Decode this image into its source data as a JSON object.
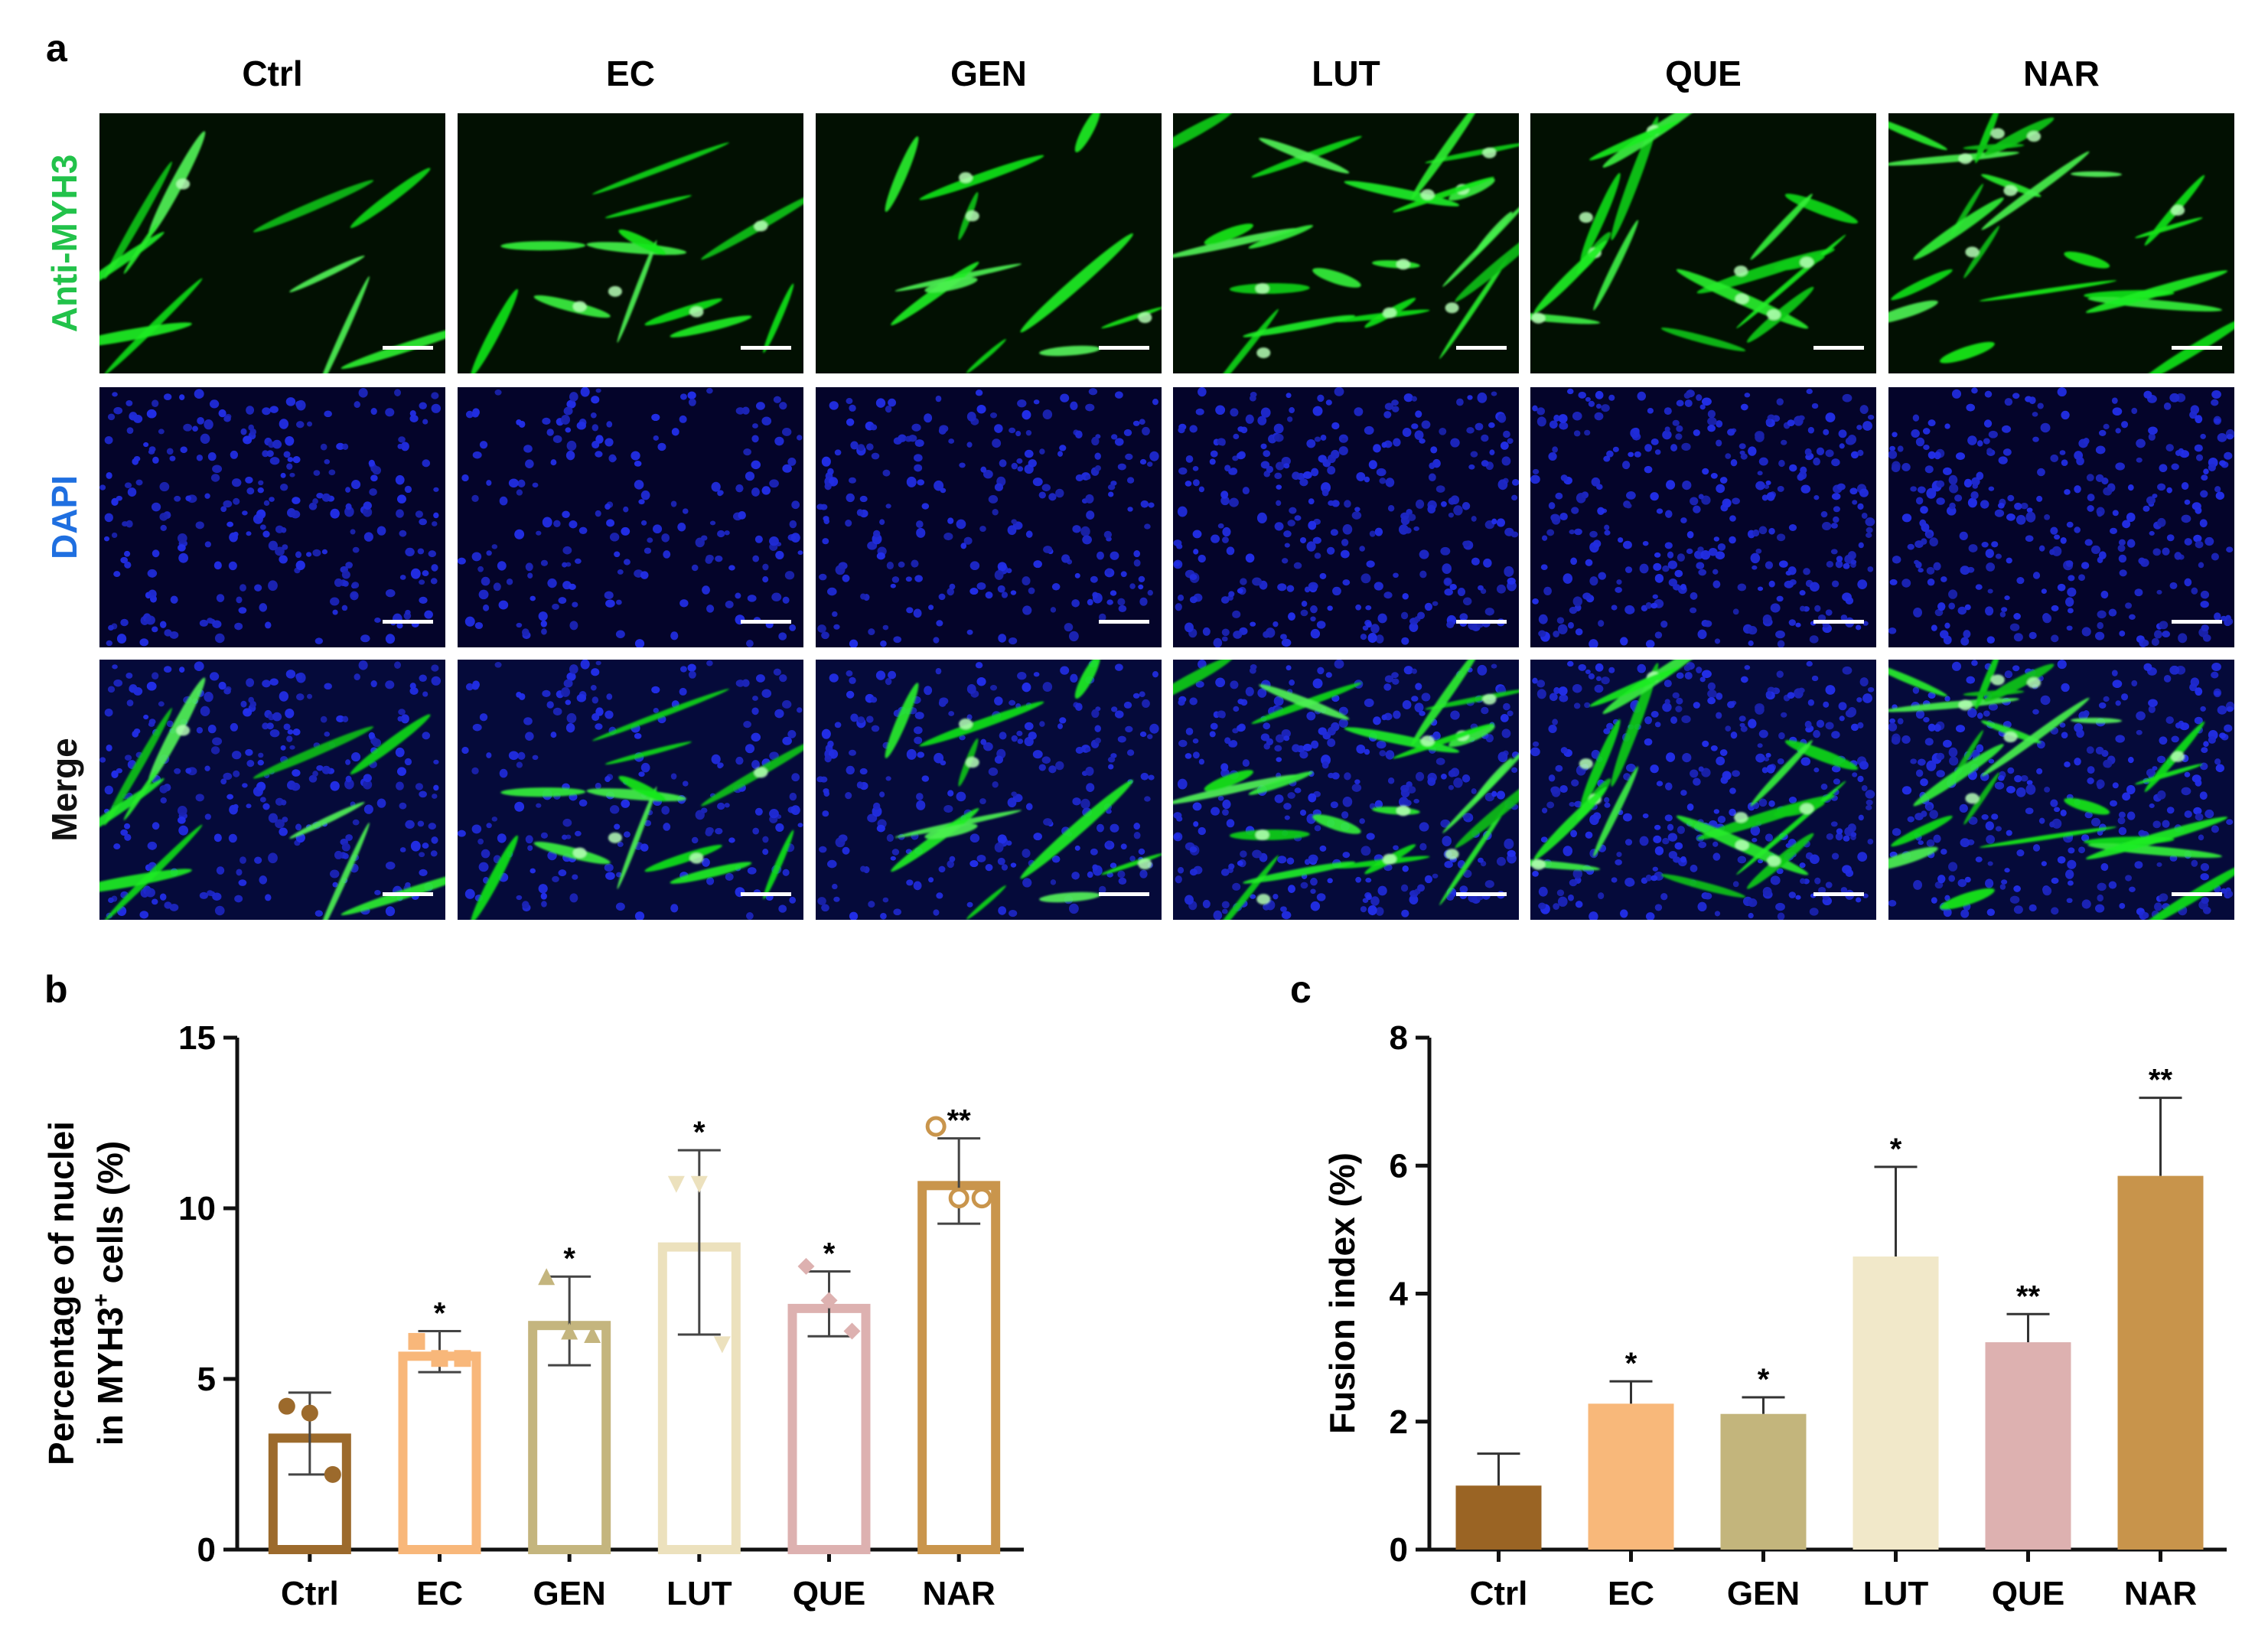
{
  "figure": {
    "panel_labels": {
      "a": "a",
      "b": "b",
      "c": "c"
    }
  },
  "micrograph_grid": {
    "columns": [
      "Ctrl",
      "EC",
      "GEN",
      "LUT",
      "QUE",
      "NAR"
    ],
    "rows": [
      {
        "label": "Anti-MYH3",
        "color": "#22c24a",
        "stain": "green"
      },
      {
        "label": "DAPI",
        "color": "#1f6fe0",
        "stain": "blue"
      },
      {
        "label": "Merge",
        "color": "#111111",
        "stain": "merge"
      }
    ],
    "scale_bar": true
  },
  "chart_data": [
    {
      "id": "b",
      "type": "bar",
      "style": "hollow-with-points",
      "categories": [
        "Ctrl",
        "EC",
        "GEN",
        "LUT",
        "QUE",
        "NAR"
      ],
      "values": [
        3.4,
        5.8,
        6.7,
        9.0,
        7.2,
        10.8
      ],
      "errors": [
        1.2,
        0.6,
        1.3,
        2.7,
        0.95,
        1.25
      ],
      "points": [
        [
          4.2,
          4.0,
          2.2
        ],
        [
          6.1,
          5.6,
          5.6
        ],
        [
          8.0,
          6.4,
          6.3
        ],
        [
          10.7,
          10.7,
          6.0
        ],
        [
          8.3,
          7.3,
          6.4
        ],
        [
          12.4,
          10.3,
          10.3
        ]
      ],
      "point_shapes": [
        "circle",
        "square",
        "triangle-up",
        "triangle-down",
        "diamond",
        "circle-open"
      ],
      "significance": [
        "",
        "*",
        "*",
        "*",
        "*",
        "**"
      ],
      "colors": [
        "#9c6a2c",
        "#f8b77a",
        "#c4b57e",
        "#ece1bd",
        "#ddb1b0",
        "#c9954c"
      ],
      "ylim": [
        0,
        15
      ],
      "yticks": [
        0,
        5,
        10,
        15
      ],
      "ylabel_lines": [
        "Percentage of nuclei",
        "in MYH3",
        "+",
        " cells (%)"
      ]
    },
    {
      "id": "c",
      "type": "bar",
      "style": "filled",
      "categories": [
        "Ctrl",
        "EC",
        "GEN",
        "LUT",
        "QUE",
        "NAR"
      ],
      "values": [
        1.0,
        2.28,
        2.12,
        4.58,
        3.24,
        5.84
      ],
      "errors": [
        0.5,
        0.35,
        0.26,
        1.4,
        0.44,
        1.22
      ],
      "significance": [
        "",
        "*",
        "*",
        "*",
        "**",
        "**"
      ],
      "colors": [
        "#9a6424",
        "#f8b87a",
        "#c3b57c",
        "#f1e8c9",
        "#ddb1b0",
        "#c8944b"
      ],
      "ylim": [
        0,
        8
      ],
      "yticks": [
        0,
        2,
        4,
        6,
        8
      ],
      "ylabel": "Fusion index (%)"
    }
  ]
}
